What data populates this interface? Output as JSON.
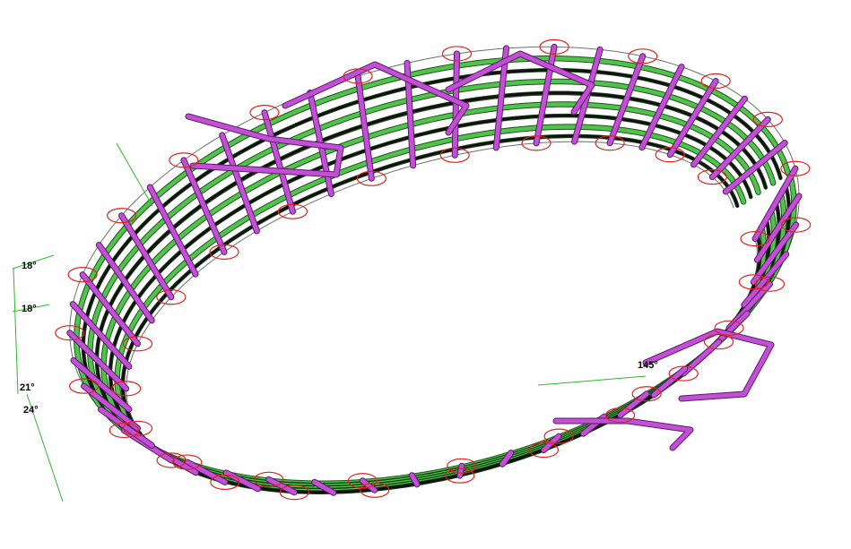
{
  "diagram": {
    "colors": {
      "background": "#ffffff",
      "rib": "#c24fd6",
      "rib_edge": "#5a1d66",
      "rail_green": "#4fc34a",
      "rail_black": "#111111",
      "guide": "#707070",
      "node_ring": "#e0231d",
      "dim": "#2db82d"
    },
    "angle_labels": [
      "18°",
      "18°",
      "21°",
      "24°",
      "145°"
    ]
  }
}
